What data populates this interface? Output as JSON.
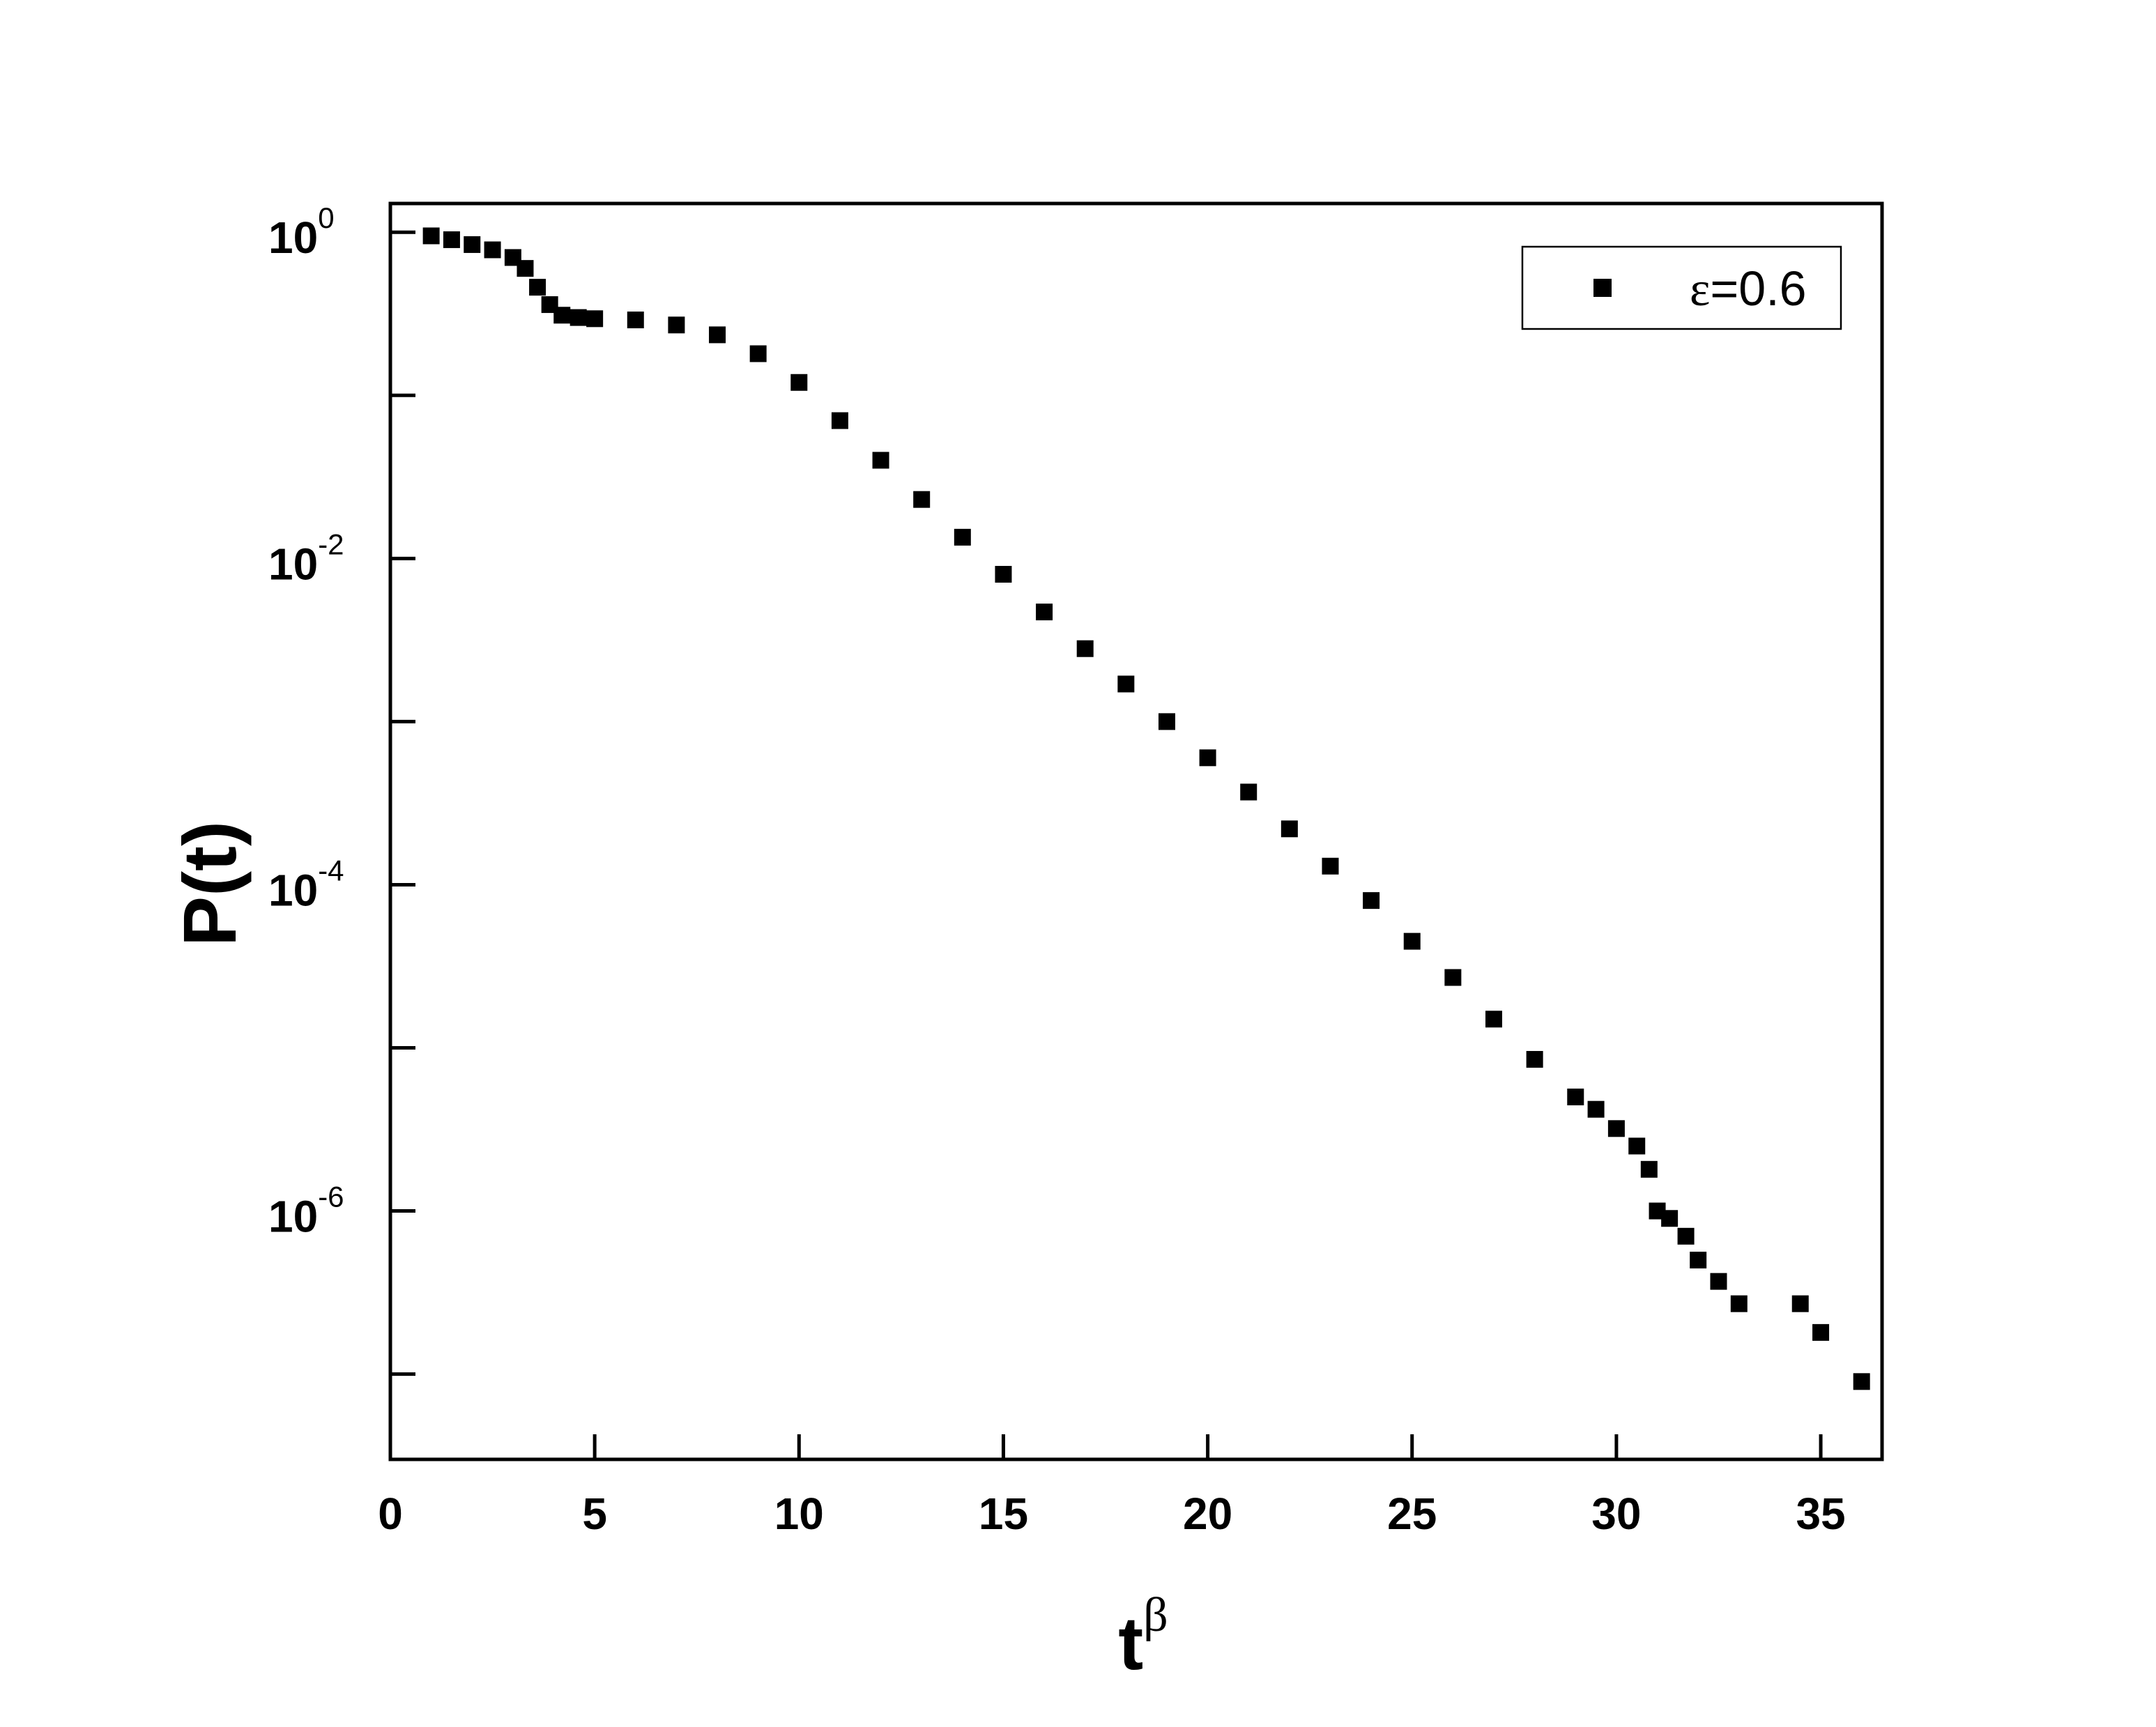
{
  "chart_data": {
    "type": "scatter",
    "xlabel": "t",
    "xlabel_superscript": "β",
    "ylabel": "P(t)",
    "xlim": [
      0,
      36.5
    ],
    "ylim": [
      3e-08,
      1.5
    ],
    "yscale": "log",
    "x_ticks": [
      0,
      5,
      10,
      15,
      20,
      25,
      30,
      35
    ],
    "y_ticks_major": [
      {
        "value": 1,
        "base": "10",
        "exp": "0"
      },
      {
        "value": 0.01,
        "base": "10",
        "exp": "-2"
      },
      {
        "value": 0.0001,
        "base": "10",
        "exp": "-4"
      },
      {
        "value": 1e-06,
        "base": "10",
        "exp": "-6"
      }
    ],
    "y_ticks_minor": [
      0.1,
      0.001,
      1e-05,
      1e-07
    ],
    "grid": false,
    "legend": {
      "position": "top-right",
      "entries": [
        {
          "symbol": "ε",
          "text": "=0.6",
          "marker": "square"
        }
      ]
    },
    "series": [
      {
        "name": "ε=0.6",
        "marker": "square",
        "color": "#000000",
        "points": [
          [
            1.0,
            0.95
          ],
          [
            1.5,
            0.9
          ],
          [
            2.0,
            0.84
          ],
          [
            2.5,
            0.78
          ],
          [
            3.0,
            0.7
          ],
          [
            3.3,
            0.6
          ],
          [
            3.6,
            0.46
          ],
          [
            3.9,
            0.36
          ],
          [
            4.2,
            0.31
          ],
          [
            4.6,
            0.3
          ],
          [
            5.0,
            0.295
          ],
          [
            6.0,
            0.29
          ],
          [
            7.0,
            0.27
          ],
          [
            8.0,
            0.235
          ],
          [
            9.0,
            0.18
          ],
          [
            10.0,
            0.12
          ],
          [
            11.0,
            0.07
          ],
          [
            12.0,
            0.04
          ],
          [
            13.0,
            0.023
          ],
          [
            14.0,
            0.0135
          ],
          [
            15.0,
            0.008
          ],
          [
            16.0,
            0.0047
          ],
          [
            17.0,
            0.0028
          ],
          [
            18.0,
            0.0017
          ],
          [
            19.0,
            0.001
          ],
          [
            20.0,
            0.0006
          ],
          [
            21.0,
            0.00037
          ],
          [
            22.0,
            0.00022
          ],
          [
            23.0,
            0.00013
          ],
          [
            24.0,
            8e-05
          ],
          [
            25.0,
            4.5e-05
          ],
          [
            26.0,
            2.7e-05
          ],
          [
            27.0,
            1.5e-05
          ],
          [
            28.0,
            8.5e-06
          ],
          [
            29.0,
            5e-06
          ],
          [
            29.5,
            4.2e-06
          ],
          [
            30.0,
            3.2e-06
          ],
          [
            30.5,
            2.5e-06
          ],
          [
            30.8,
            1.8e-06
          ],
          [
            31.0,
            1e-06
          ],
          [
            31.3,
            9e-07
          ],
          [
            31.7,
            7e-07
          ],
          [
            32.0,
            5e-07
          ],
          [
            32.5,
            3.7e-07
          ],
          [
            33.0,
            2.7e-07
          ],
          [
            34.5,
            2.7e-07
          ],
          [
            35.0,
            1.8e-07
          ],
          [
            36.0,
            9e-08
          ]
        ]
      }
    ]
  }
}
